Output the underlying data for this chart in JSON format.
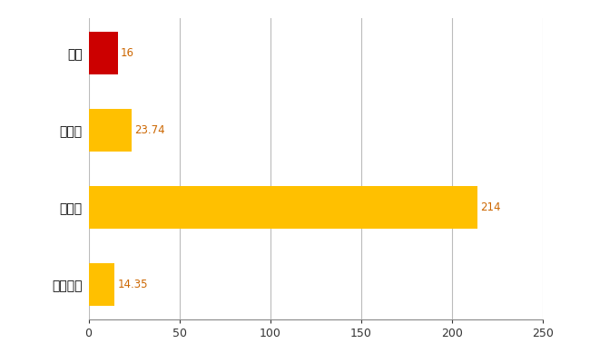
{
  "categories": [
    "全国平均",
    "県最大",
    "県平均",
    "南区"
  ],
  "values": [
    14.35,
    214,
    23.74,
    16
  ],
  "bar_colors": [
    "#FFC000",
    "#FFC000",
    "#FFC000",
    "#CC0000"
  ],
  "value_labels": [
    "14.35",
    "214",
    "23.74",
    "16"
  ],
  "xlim": [
    0,
    250
  ],
  "xticks": [
    0,
    50,
    100,
    150,
    200,
    250
  ],
  "grid_color": "#BBBBBB",
  "label_color": "#CC6600",
  "bar_height": 0.55,
  "figsize": [
    6.5,
    4.0
  ],
  "dpi": 100,
  "bg_color": "#FFFFFF"
}
